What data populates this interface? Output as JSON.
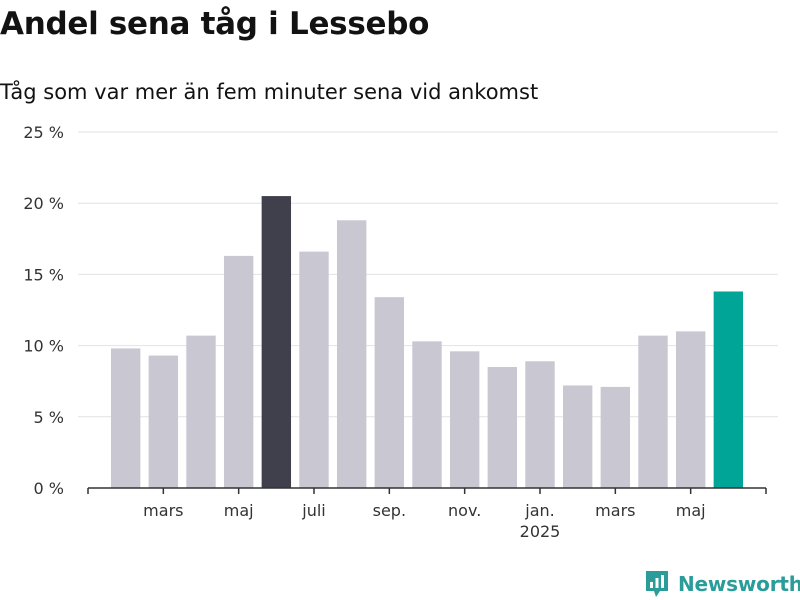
{
  "title": "Andel sena tåg i Lessebo",
  "subtitle": "Tåg som var mer än fem minuter sena vid ankomst",
  "brand": {
    "name": "Newsworthy",
    "icon": "newsworthy-logo-icon",
    "color": "#2a9d9a"
  },
  "colors": {
    "default_bar": "#c8c7d2",
    "highlight_bar": "#403f4c",
    "latest_bar": "#00a598",
    "grid": "#e2e2e2",
    "axis": "#333333"
  },
  "chart_data": {
    "type": "bar",
    "title": "Andel sena tåg i Lessebo",
    "subtitle": "Tåg som var mer än fem minuter sena vid ankomst",
    "xlabel": "",
    "ylabel": "",
    "ylim": [
      0,
      25
    ],
    "y_ticks": [
      0,
      5,
      10,
      15,
      20,
      25
    ],
    "y_tick_labels": [
      "0 %",
      "5 %",
      "10 %",
      "15 %",
      "20 %",
      "25 %"
    ],
    "grid": true,
    "categories": [
      "2024-02",
      "2024-03",
      "2024-04",
      "2024-05",
      "2024-06",
      "2024-07",
      "2024-08",
      "2024-09",
      "2024-10",
      "2024-11",
      "2024-12",
      "2025-01",
      "2025-02",
      "2025-03",
      "2025-04",
      "2025-05",
      "2025-06"
    ],
    "values": [
      9.8,
      9.3,
      10.7,
      16.3,
      20.5,
      16.6,
      18.8,
      13.4,
      10.3,
      9.6,
      8.5,
      8.9,
      7.2,
      7.1,
      10.7,
      11.0,
      13.8
    ],
    "highlight_index": 4,
    "latest_index": 16,
    "x_tick_labels": [
      {
        "index": 1,
        "label": "mars"
      },
      {
        "index": 3,
        "label": "maj"
      },
      {
        "index": 5,
        "label": "juli"
      },
      {
        "index": 7,
        "label": "sep."
      },
      {
        "index": 9,
        "label": "nov."
      },
      {
        "index": 11,
        "label": "jan.",
        "sublabel": "2025"
      },
      {
        "index": 13,
        "label": "mars"
      },
      {
        "index": 15,
        "label": "maj"
      }
    ]
  }
}
